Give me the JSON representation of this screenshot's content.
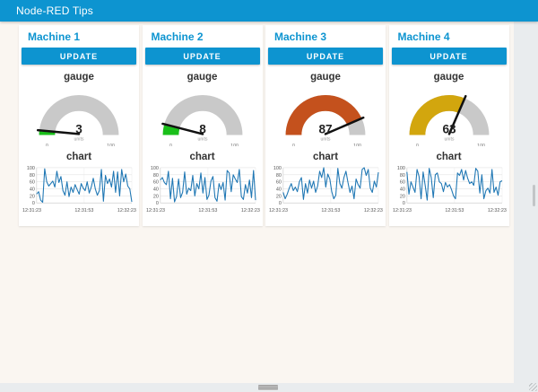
{
  "titlebar": {
    "title": "Node-RED Tips"
  },
  "colors": {
    "primary": "#0d94d0",
    "page_bg": "#faf6f1",
    "card_bg": "#ffffff",
    "gauge_track": "#c9c9c9",
    "chart_line": "#1f77b4",
    "grid_line": "#e3e3e3",
    "scroll_track": "#e9ecee",
    "scroll_thumb": "#b0b0b0"
  },
  "machines": [
    {
      "name": "Machine 1",
      "button_label": "UPDATE",
      "gauge": {
        "title": "gauge",
        "value": 3,
        "min": 0,
        "max": 100,
        "units": "units",
        "color": "#1abf1a"
      },
      "chart": {
        "title": "chart",
        "x_labels": [
          "12:31:23",
          "12:31:53",
          "12:32:23"
        ],
        "y_ticks": [
          0,
          20,
          40,
          60,
          80,
          100
        ],
        "y_min": 0,
        "y_max": 100,
        "values": [
          25,
          32,
          8,
          2,
          97,
          60,
          48,
          55,
          62,
          45,
          90,
          58,
          75,
          35,
          22,
          60,
          18,
          45,
          30,
          52,
          38,
          25,
          55,
          42,
          35,
          60,
          28,
          45,
          70,
          40,
          22,
          35,
          95,
          5,
          78,
          55,
          68,
          45,
          90,
          30,
          88,
          20,
          95,
          60,
          82,
          48,
          40,
          3
        ]
      }
    },
    {
      "name": "Machine 2",
      "button_label": "UPDATE",
      "gauge": {
        "title": "gauge",
        "value": 8,
        "min": 0,
        "max": 100,
        "units": "units",
        "color": "#1abf1a"
      },
      "chart": {
        "title": "chart",
        "x_labels": [
          "12:31:23",
          "12:31:53",
          "12:32:23"
        ],
        "y_ticks": [
          0,
          20,
          40,
          60,
          80,
          100
        ],
        "y_min": 0,
        "y_max": 100,
        "values": [
          65,
          72,
          58,
          52,
          90,
          12,
          70,
          3,
          18,
          68,
          15,
          30,
          88,
          25,
          42,
          35,
          78,
          20,
          55,
          40,
          85,
          28,
          72,
          10,
          22,
          62,
          75,
          15,
          5,
          55,
          38,
          58,
          8,
          92,
          85,
          32,
          80,
          68,
          58,
          95,
          18,
          10,
          52,
          28,
          65,
          15,
          92,
          8
        ]
      }
    },
    {
      "name": "Machine 3",
      "button_label": "UPDATE",
      "gauge": {
        "title": "gauge",
        "value": 87,
        "min": 0,
        "max": 100,
        "units": "units",
        "color": "#c4511d"
      },
      "chart": {
        "title": "chart",
        "x_labels": [
          "12:31:23",
          "12:31:53",
          "12:32:23"
        ],
        "y_ticks": [
          0,
          20,
          40,
          60,
          80,
          100
        ],
        "y_min": 0,
        "y_max": 100,
        "values": [
          30,
          12,
          25,
          42,
          55,
          35,
          45,
          32,
          60,
          72,
          10,
          55,
          28,
          65,
          42,
          62,
          30,
          48,
          90,
          72,
          100,
          45,
          82,
          68,
          32,
          12,
          22,
          98,
          55,
          42,
          72,
          90,
          58,
          30,
          48,
          12,
          68,
          52,
          42,
          95,
          100,
          78,
          95,
          42,
          30,
          62,
          45,
          87
        ]
      }
    },
    {
      "name": "Machine 4",
      "button_label": "UPDATE",
      "gauge": {
        "title": "gauge",
        "value": 63,
        "min": 0,
        "max": 100,
        "units": "units",
        "color": "#d2a60e"
      },
      "chart": {
        "title": "chart",
        "x_labels": [
          "12:31:23",
          "12:31:53",
          "12:32:23"
        ],
        "y_ticks": [
          0,
          20,
          40,
          60,
          80,
          100
        ],
        "y_min": 0,
        "y_max": 100,
        "values": [
          88,
          25,
          60,
          45,
          30,
          95,
          75,
          12,
          88,
          50,
          8,
          98,
          72,
          15,
          80,
          85,
          60,
          55,
          32,
          58,
          45,
          52,
          38,
          20,
          12,
          85,
          78,
          95,
          65,
          92,
          70,
          55,
          60,
          50,
          98,
          90,
          28,
          80,
          12,
          35,
          42,
          28,
          95,
          30,
          45,
          22,
          60,
          63
        ]
      }
    }
  ]
}
